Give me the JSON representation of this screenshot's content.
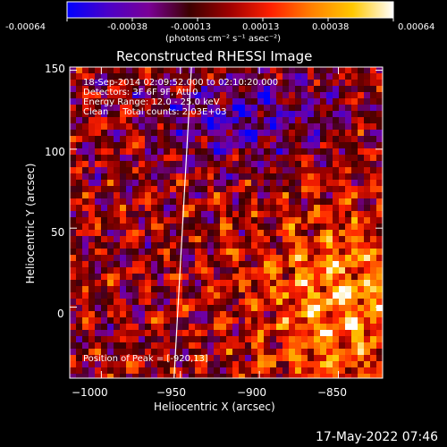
{
  "colorbar": {
    "ticks": [
      "-0.00064",
      "-0.00038",
      "-0.00013",
      "0.00013",
      "0.00038",
      "0.00064"
    ],
    "unit_label": "(photons cm⁻² s⁻¹ asec⁻²)",
    "colors": [
      "#0000ff",
      "#4b00c8",
      "#7a0096",
      "#3c0000",
      "#a00000",
      "#ff2000",
      "#ff8000",
      "#ffc800",
      "#ffffff"
    ]
  },
  "info": {
    "line1": "18-Sep-2014 02:09:52.000 to 02:10:20.000",
    "line2": "Detectors: 3F 6F 9F, Att 0",
    "line3": "Energy Range: 12.0 - 25.0 keV",
    "line4": "Clean     Total counts: 2.03E+03",
    "peak": "Position of Peak = [-920,13]"
  },
  "timestamp": "17-May-2022 07:46",
  "chart_data": {
    "type": "heatmap",
    "title": "Reconstructed RHESSI Image",
    "xlabel": "Heliocentric X (arcsec)",
    "ylabel": "Heliocentric Y (arcsec)",
    "xlim": [
      -1020,
      -822
    ],
    "ylim": [
      -45,
      152
    ],
    "xticks": [
      -1000,
      -950,
      -900,
      -850
    ],
    "yticks": [
      0,
      50,
      100,
      150
    ],
    "xtick_labels": [
      "−1000",
      "−950",
      "−900",
      "−850"
    ],
    "ytick_labels": [
      "0",
      "50",
      "100",
      "150"
    ],
    "limb_line": {
      "x_top": -943,
      "x_bottom": -954
    },
    "peak_position": [
      -920,
      13
    ],
    "value_range": [
      -0.00064,
      0.00064
    ]
  }
}
